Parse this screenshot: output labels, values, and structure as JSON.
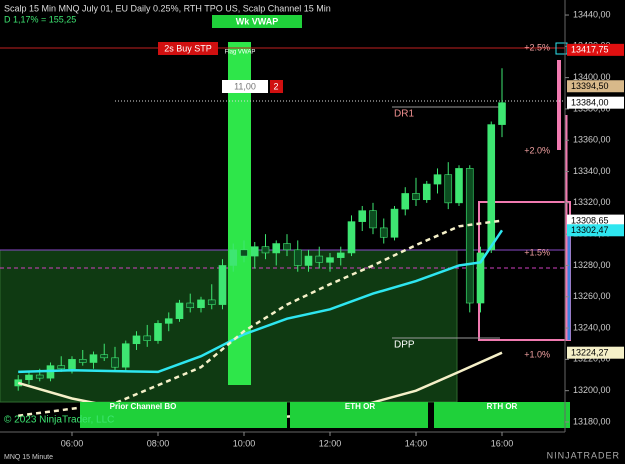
{
  "header": {
    "title": "Scalp 15 Min MNQ July 01, EU Daily 0.25%, RTH TPO US, Scalp Channel 15 Min",
    "stat": "D 1,17% = 155,25"
  },
  "chart_data": {
    "type": "candlestick",
    "instrument": "MNQ 15 Minute",
    "brand": "NINJATRADER",
    "copyright": "© 2023 NinjaTrader, LLC",
    "up_color": "#3ee672",
    "down_color": "#0c4d20",
    "xlim": [
      4.326,
      17.465
    ],
    "ylim": [
      13173.6,
      13449.6
    ],
    "xticks": [
      {
        "value": 6,
        "label": "06:00"
      },
      {
        "value": 8,
        "label": "08:00"
      },
      {
        "value": 10,
        "label": "10:00"
      },
      {
        "value": 12,
        "label": "12:00"
      },
      {
        "value": 14,
        "label": "14:00"
      },
      {
        "value": 16,
        "label": "16:00"
      }
    ],
    "yticks": [
      {
        "value": 13180,
        "label": "13180,00"
      },
      {
        "value": 13200,
        "label": "13200,00"
      },
      {
        "value": 13220,
        "label": "13220,00"
      },
      {
        "value": 13240,
        "label": "13240,00"
      },
      {
        "value": 13260,
        "label": "13260,00"
      },
      {
        "value": 13280,
        "label": "13280,00"
      },
      {
        "value": 13300,
        "label": "13300,00"
      },
      {
        "value": 13320,
        "label": "13320,00"
      },
      {
        "value": 13340,
        "label": "13340,00"
      },
      {
        "value": 13360,
        "label": "13360,00"
      },
      {
        "value": 13380,
        "label": "13380,00"
      },
      {
        "value": 13400,
        "label": "13400,00"
      },
      {
        "value": 13420,
        "label": "13420,00"
      },
      {
        "value": 13440,
        "label": "13440,00"
      }
    ],
    "x": [
      4.75,
      5,
      5.25,
      5.5,
      5.75,
      6,
      6.25,
      6.5,
      6.75,
      7,
      7.25,
      7.5,
      7.75,
      8,
      8.25,
      8.5,
      8.75,
      9,
      9.25,
      9.5,
      9.75,
      10,
      10.25,
      10.5,
      10.75,
      11,
      11.25,
      11.5,
      11.75,
      12,
      12.25,
      12.5,
      12.75,
      13,
      13.25,
      13.5,
      13.75,
      14,
      14.25,
      14.5,
      14.75,
      15,
      15.25,
      15.5,
      15.75,
      16
    ],
    "open": [
      13203,
      13207,
      13210,
      13208,
      13216,
      13214,
      13220,
      13218,
      13223,
      13221,
      13215,
      13230,
      13235,
      13232,
      13243,
      13246,
      13256,
      13253,
      13258,
      13255,
      13280,
      13290,
      13286,
      13292,
      13288,
      13294,
      13290,
      13280,
      13286,
      13282,
      13285,
      13288,
      13308,
      13315,
      13304,
      13298,
      13316,
      13326,
      13322,
      13332,
      13338,
      13320,
      13342,
      13256,
      13290,
      13370
    ],
    "high": [
      13210,
      13212,
      13214,
      13218,
      13222,
      13222,
      13226,
      13225,
      13230,
      13228,
      13232,
      13238,
      13242,
      13245,
      13250,
      13258,
      13262,
      13260,
      13268,
      13284,
      13294,
      13296,
      13295,
      13300,
      13296,
      13300,
      13296,
      13290,
      13292,
      13288,
      13292,
      13312,
      13318,
      13320,
      13310,
      13318,
      13330,
      13336,
      13334,
      13342,
      13346,
      13344,
      13344,
      13292,
      13372,
      13406
    ],
    "low": [
      13200,
      13204,
      13206,
      13206,
      13212,
      13211,
      13216,
      13214,
      13219,
      13212,
      13213,
      13226,
      13228,
      13230,
      13238,
      13244,
      13250,
      13250,
      13252,
      13252,
      13276,
      13282,
      13278,
      13284,
      13280,
      13286,
      13276,
      13276,
      13278,
      13276,
      13280,
      13286,
      13302,
      13300,
      13294,
      13296,
      13312,
      13318,
      13320,
      13326,
      13316,
      13318,
      13250,
      13250,
      13288,
      13362
    ],
    "close": [
      13207,
      13210,
      13208,
      13216,
      13214,
      13220,
      13218,
      13223,
      13221,
      13215,
      13230,
      13235,
      13232,
      13243,
      13246,
      13256,
      13253,
      13258,
      13255,
      13280,
      13290,
      13286,
      13292,
      13288,
      13294,
      13290,
      13280,
      13286,
      13282,
      13285,
      13288,
      13308,
      13315,
      13304,
      13298,
      13316,
      13326,
      13322,
      13332,
      13338,
      13320,
      13342,
      13256,
      13288,
      13370,
      13384
    ],
    "lines": [
      {
        "color": "#2ee6f0",
        "style": "solid",
        "x": [
          4.75,
          6,
          8,
          9,
          10,
          11,
          12,
          13,
          14,
          15,
          15.5,
          16
        ],
        "values": [
          13212,
          13213,
          13212,
          13222,
          13236,
          13246,
          13252,
          13262,
          13270,
          13280,
          13282,
          13302.47
        ]
      },
      {
        "color": "#f5f0c8",
        "style": "dashed",
        "x": [
          4.75,
          7,
          9,
          10,
          11,
          12,
          13,
          14,
          15,
          16
        ],
        "values": [
          13184,
          13192,
          13215,
          13238,
          13255,
          13268,
          13280,
          13293,
          13305,
          13308.65
        ]
      },
      {
        "color": "#f5f0c8",
        "style": "solid",
        "x": [
          4.75,
          6,
          8,
          10,
          12,
          14,
          15,
          16
        ],
        "values": [
          13205,
          13195,
          13184,
          13182,
          13185,
          13200,
          13212,
          13224.27
        ]
      }
    ],
    "price_markers": [
      {
        "value": 13417.75,
        "label": "13417,75",
        "color": "#e01010",
        "text_color": "#ffffff"
      },
      {
        "value": 13394.5,
        "label": "13394,50",
        "color": "#d8b98a",
        "text_color": "#000000"
      },
      {
        "value": 13384,
        "label": "13384,00",
        "color": "#ffffff",
        "text_color": "#000000"
      },
      {
        "value": 13308.65,
        "label": "13308,65",
        "color": "#ffffff",
        "text_color": "#000000"
      },
      {
        "value": 13302.47,
        "label": "13302,47",
        "color": "#2ee6f0",
        "text_color": "#000000"
      },
      {
        "value": 13224.27,
        "label": "13224,27",
        "color": "#f5f0c8",
        "text_color": "#000000"
      }
    ],
    "annotations": {
      "wk_vwap": "Wk VWAP",
      "order": "2s Buy STP",
      "qty": "11,00",
      "count": "2",
      "pct25": "+2.5%",
      "pct20": "+2.0%",
      "pct15": "+1.5%",
      "pct10": "+1.0%",
      "dr1": "DR1",
      "dpp": "DPP",
      "prior": "Prior Channel BO",
      "eth": "ETH OR",
      "rth": "RTH OR",
      "flag": "Flag VWAP"
    }
  }
}
